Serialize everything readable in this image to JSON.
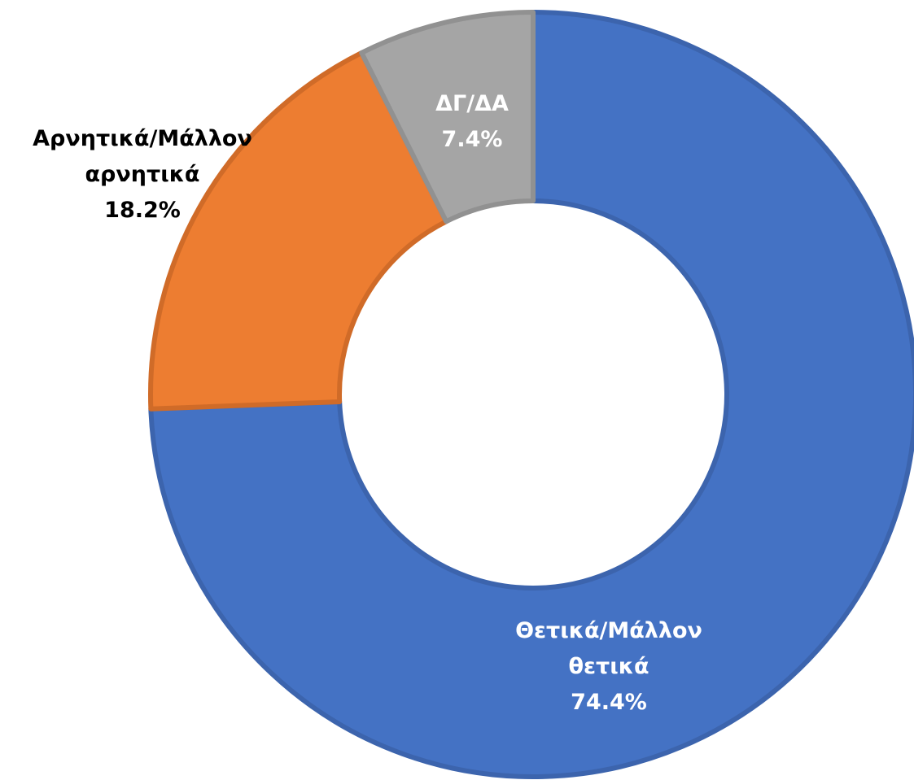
{
  "chart_data": {
    "type": "donut",
    "categories": [
      "Θετικά/Μάλλον θετικά",
      "Αρνητικά/Μάλλον αρνητικά",
      "ΔΓ/ΔΑ"
    ],
    "values": [
      74.4,
      18.2,
      7.4
    ],
    "value_labels": [
      "74.4%",
      "18.2%",
      "7.4%"
    ],
    "colors": [
      "#4472c4",
      "#ed7d31",
      "#a5a5a5"
    ]
  }
}
